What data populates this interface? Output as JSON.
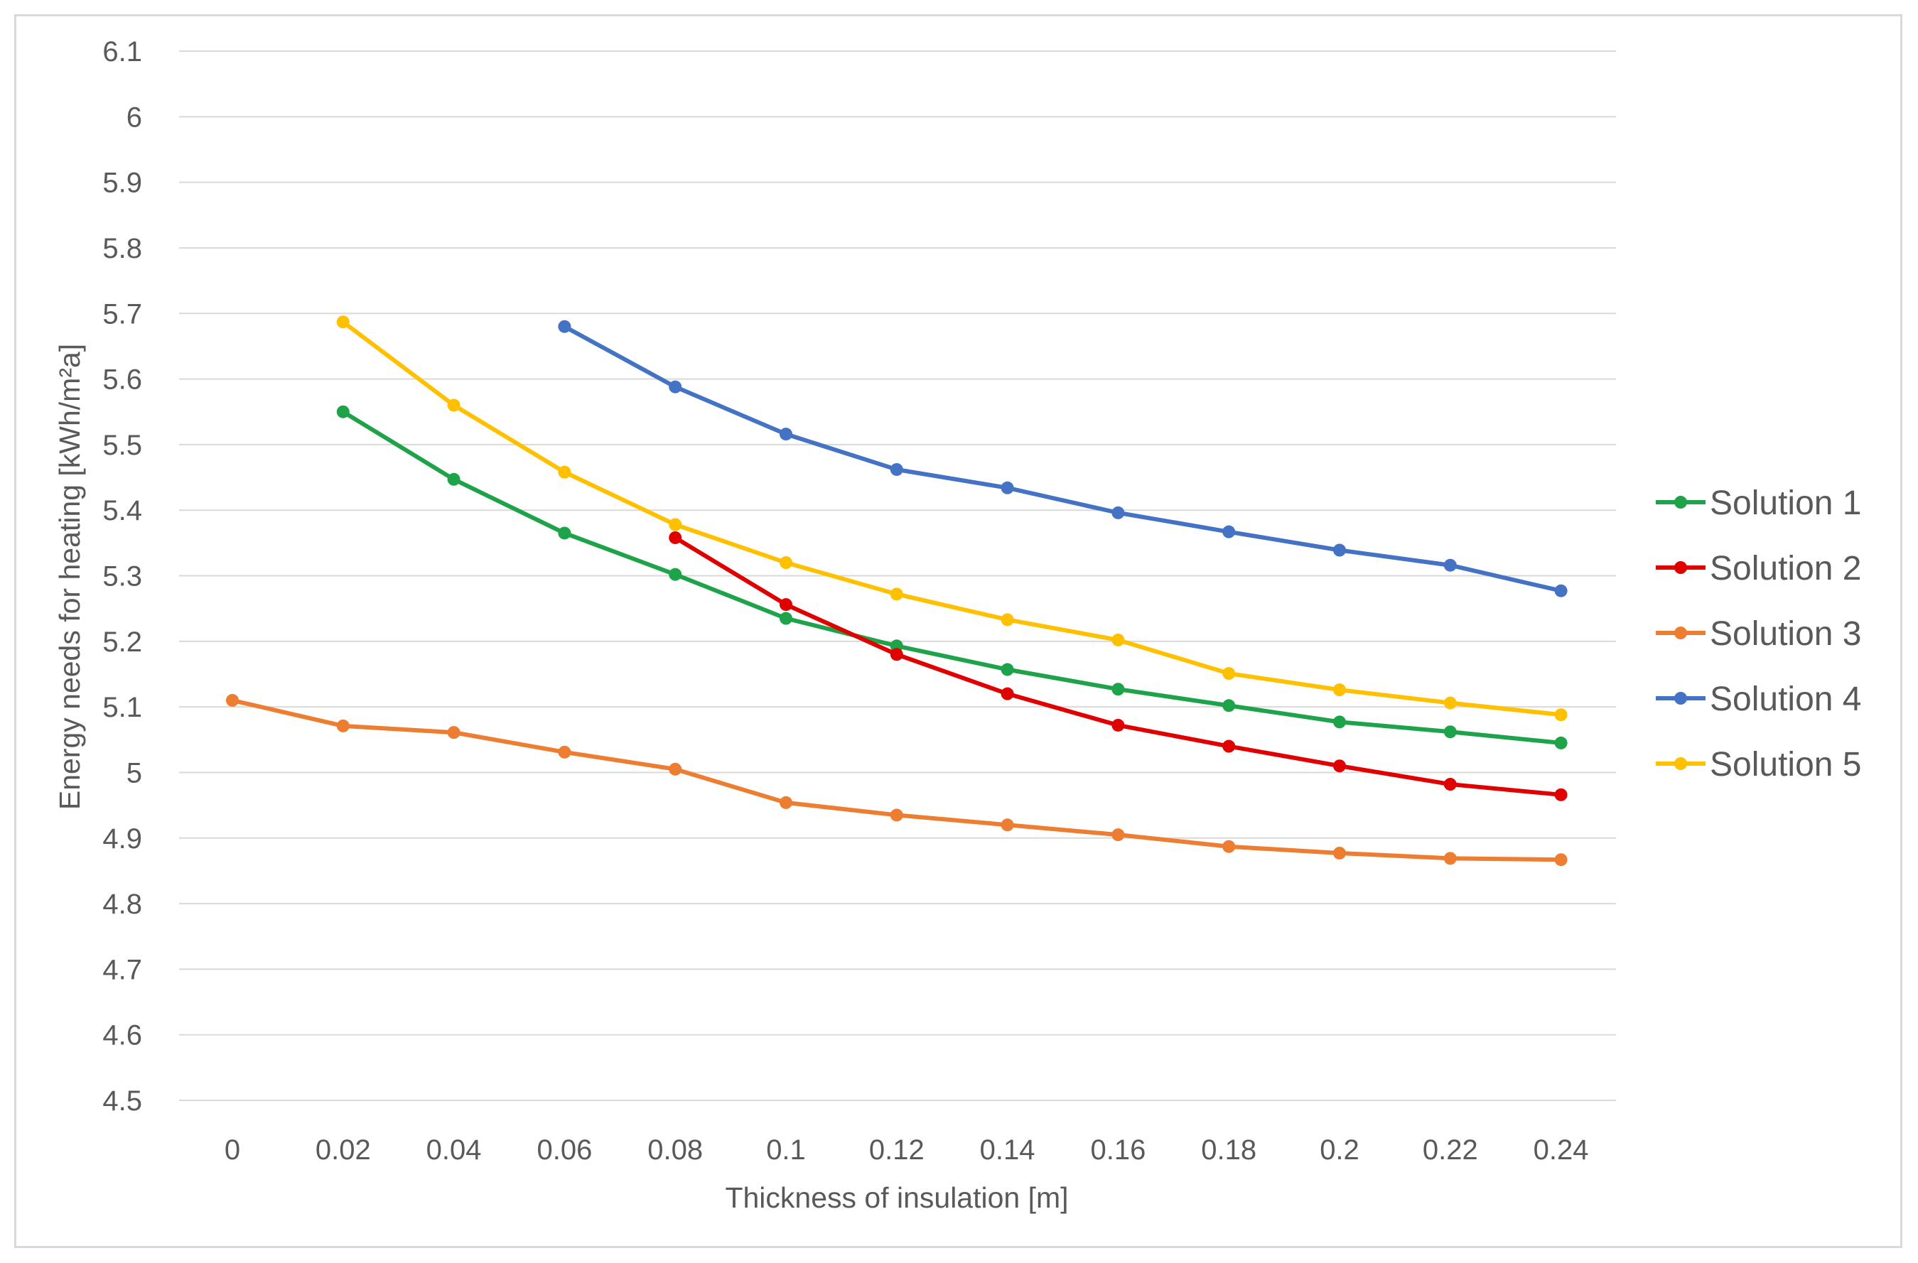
{
  "chart_data": {
    "type": "line",
    "title": "",
    "xlabel": "Thickness of insulation [m]",
    "ylabel": "Energy needs for heating [kWh/m²a]",
    "x": [
      0,
      0.02,
      0.04,
      0.06,
      0.08,
      0.1,
      0.12,
      0.14,
      0.16,
      0.18,
      0.2,
      0.22,
      0.24
    ],
    "x_tick_labels": [
      "0",
      "0.02",
      "0.04",
      "0.06",
      "0.08",
      "0.1",
      "0.12",
      "0.14",
      "0.16",
      "0.18",
      "0.2",
      "0.22",
      "0.24"
    ],
    "ylim": [
      4.5,
      6.1
    ],
    "y_ticks": [
      4.5,
      4.6,
      4.7,
      4.8,
      4.9,
      5,
      5.1,
      5.2,
      5.3,
      5.4,
      5.5,
      5.6,
      5.7,
      5.8,
      5.9,
      6,
      6.1
    ],
    "y_tick_labels": [
      "4.5",
      "4.6",
      "4.7",
      "4.8",
      "4.9",
      "5",
      "5.1",
      "5.2",
      "5.3",
      "5.4",
      "5.5",
      "5.6",
      "5.7",
      "5.8",
      "5.9",
      "6",
      "6.1"
    ],
    "grid": "horizontal",
    "legend_position": "right",
    "series": [
      {
        "name": "Solution 1",
        "color": "#1fa34a",
        "values": [
          null,
          5.55,
          5.447,
          5.365,
          5.302,
          5.235,
          5.193,
          5.157,
          5.127,
          5.102,
          5.077,
          5.062,
          5.045
        ]
      },
      {
        "name": "Solution 2",
        "color": "#e00000",
        "values": [
          null,
          null,
          null,
          null,
          5.358,
          5.256,
          5.18,
          5.12,
          5.072,
          5.04,
          5.01,
          4.982,
          4.966
        ]
      },
      {
        "name": "Solution 3",
        "color": "#ed7d31",
        "values": [
          5.11,
          5.071,
          5.061,
          5.031,
          5.005,
          4.954,
          4.935,
          4.92,
          4.905,
          4.887,
          4.877,
          4.869,
          4.867
        ]
      },
      {
        "name": "Solution 4",
        "color": "#4472c4",
        "values": [
          null,
          null,
          null,
          5.68,
          5.588,
          5.516,
          5.462,
          5.434,
          5.396,
          5.367,
          5.339,
          5.316,
          5.277
        ]
      },
      {
        "name": "Solution 5",
        "color": "#ffc000",
        "values": [
          null,
          5.687,
          5.56,
          5.458,
          5.378,
          5.32,
          5.272,
          5.233,
          5.202,
          5.151,
          5.126,
          5.106,
          5.088
        ]
      }
    ]
  }
}
